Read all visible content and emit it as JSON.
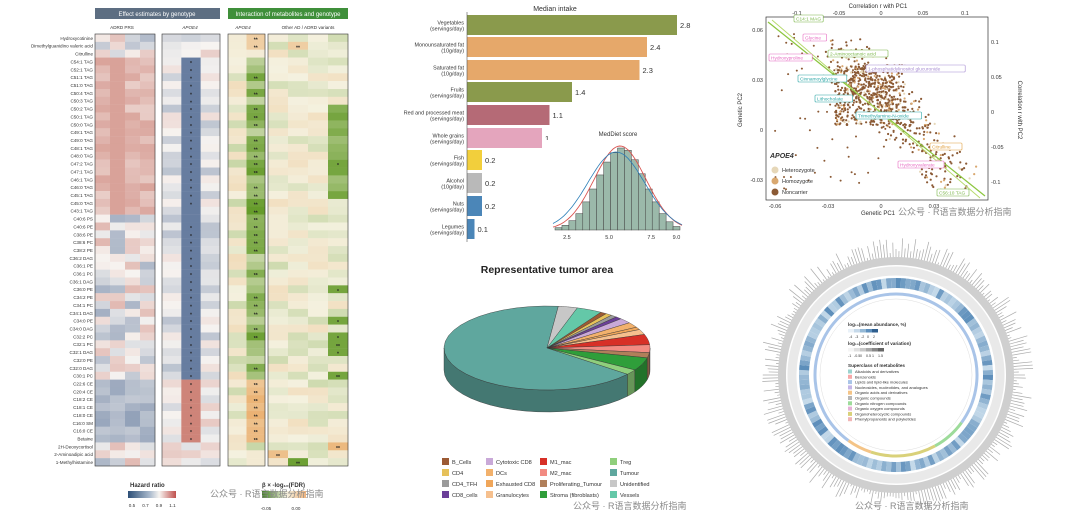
{
  "heatmap": {
    "type": "heatmap",
    "header_left": "Effect estimates by genotype",
    "header_right": "Interaction of metabolites and genotype",
    "col_adrd": "ADRD PRS",
    "col_apoe4": "APOE4",
    "col_apoe4_int": "APOE4",
    "col_other": "Other AD / ADRD variants",
    "rows": [
      "Hydroxycotinine",
      "Dimethylguanidino valeric acid",
      "Citrulline",
      "C54:1 TAG",
      "C52:1 TAG",
      "C51:1 TAG",
      "C51:0 TAG",
      "C50:4 TAG",
      "C50:3 TAG",
      "C50:2 TAG",
      "C50:1 TAG",
      "C50:0 TAG",
      "C49:1 TAG",
      "C49:0 TAG",
      "C48:1 TAG",
      "C48:0 TAG",
      "C47:2 TAG",
      "C47:1 TAG",
      "C46:1 TAG",
      "C46:0 TAG",
      "C45:1 TAG",
      "C45:0 TAG",
      "C43:1 TAG",
      "C40:6 PS",
      "C40:6 PE",
      "C38:6 PE",
      "C38:6 PC",
      "C38:2 PE",
      "C36:2 DAG",
      "C36:1 PE",
      "C36:1 PC",
      "C36:1 DAG",
      "C36:0 PE",
      "C34:2 PE",
      "C34:1 PC",
      "C34:1 DAG",
      "C34:0 PE",
      "C34:0 DAG",
      "C32:2 PC",
      "C32:1 PC",
      "C32:1 DAG",
      "C32:0 PE",
      "C32:0 DAG",
      "C30:1 PC",
      "C22:6 CE",
      "C20:4 CE",
      "C18:2 CE",
      "C18:1 CE",
      "C18:0 CE",
      "C16:0 SM",
      "C16:0 CE",
      "Betaine",
      "2H-Deoxycortisol",
      "2-Aminoadipic acid",
      "1-Methylhistamine"
    ],
    "legend1_title": "Hazard ratio",
    "legend1_ticks": [
      "0.5",
      "0.7",
      "0.9",
      "1.1"
    ],
    "legend2_title": "β × -log₁₀(FDR)",
    "legend2_ticks": [
      "-0.05",
      "0.00"
    ]
  },
  "intake": {
    "title": "Median intake",
    "chart_data": {
      "type": "bar",
      "categories": [
        "Vegetables (servings/day)",
        "Monounsaturated fat (10g/day)",
        "Saturated fat (10g/day)",
        "Fruits (servings/day)",
        "Red and processed meat (servings/day)",
        "Whole grains (servings/day)",
        "Fish (servings/day)",
        "Alcohol (10g/day)",
        "Nuts (servings/day)",
        "Legumes (servings/day)"
      ],
      "values": [
        2.8,
        2.4,
        2.3,
        1.4,
        1.1,
        1.0,
        0.2,
        0.2,
        0.2,
        0.1
      ],
      "labels": [
        "2.8",
        "2.4",
        "2.3",
        "1.4",
        "1.1",
        "1",
        "0.2",
        "0.2",
        "0.2",
        "0.1"
      ],
      "colors": [
        "#8a9a4c",
        "#e6a86a",
        "#e6a86a",
        "#8a9a4c",
        "#b56a76",
        "#e4a5bd",
        "#f2cf3c",
        "#b9b9b9",
        "#4b86b8",
        "#4b86b8"
      ]
    }
  },
  "meddiet": {
    "title": "MedDiet score",
    "chart_data": {
      "type": "bar",
      "x_ticks": [
        "2.5",
        "5.0",
        "7.5",
        "9.0"
      ],
      "x_tick_values": [
        2.5,
        5.0,
        7.5,
        9.0
      ],
      "xlim": [
        1.2,
        9.8
      ],
      "bin_values": [
        2,
        4,
        8,
        14,
        24,
        35,
        47,
        58,
        66,
        70,
        68,
        60,
        48,
        35,
        24,
        14,
        7,
        3
      ]
    }
  },
  "pie": {
    "title": "Representative tumor area",
    "chart_data": {
      "type": "pie",
      "categories": [
        "B_Cells",
        "CD4",
        "CD4_TFH",
        "CD8_cells",
        "Cytotoxic CD8",
        "DCs",
        "Exhausted CD8",
        "Granulocytes",
        "M1_mac",
        "M2_mac",
        "Proliferating_Tumour",
        "Stroma (fibroblasts)",
        "Treg",
        "Tumour",
        "Unidentified",
        "Vessels"
      ],
      "values": [
        1,
        1,
        1,
        1,
        2,
        2,
        1,
        2,
        4,
        3,
        2,
        5,
        2,
        66,
        3,
        4
      ],
      "colors": [
        "#9c5a34",
        "#e6c15a",
        "#9a9a9a",
        "#6b3f99",
        "#c9a9d8",
        "#f2b16c",
        "#f0a65a",
        "#f6c08e",
        "#d73027",
        "#f28b82",
        "#b07f5a",
        "#2f9e3a",
        "#8fcf7c",
        "#5fa79e",
        "#c7c7c7",
        "#64c8a8"
      ]
    }
  },
  "pca": {
    "top_axis_title": "Correlation r with PC1",
    "top_ticks": [
      "-0.1",
      "-0.05",
      "0",
      "0.05",
      "0.1"
    ],
    "left_axis_title": "Genetic PC2",
    "left_ticks": [
      "0.06",
      "0.03",
      "0",
      "-0.03"
    ],
    "bottom_axis_title": "Genetic PC1",
    "bottom_ticks": [
      "-0.06",
      "-0.03",
      "0",
      "0.03"
    ],
    "right_axis_title": "Correlation r with PC2",
    "right_ticks": [
      "0.1",
      "0.05",
      "0",
      "-0.05",
      "-0.1"
    ],
    "labels": [
      "C14:1 MAG",
      "Glycine",
      "2-Aminooctanoic acid",
      "Hydroxyproline",
      "Cinnamoylglycine",
      "1-phosphatidylinositol glucuronide",
      "Lithocholate",
      "Trimethylamine-N-oxide",
      "Citrulline",
      "Hydroxyvalerate",
      "C56:10 TAG"
    ],
    "legend_title": "APOE4",
    "legend_items": [
      "Heterozygote",
      "Homozygote",
      "Noncarrier"
    ],
    "legend_colors": [
      "#e6d7b8",
      "#d9a870",
      "#8b5a35"
    ]
  },
  "circos": {
    "legend_title1": "log₁₀(mean abundance, %)",
    "legend_ticks1": [
      "-4",
      "-3",
      "-2",
      "0",
      "2"
    ],
    "legend_title2": "log₁₀(coefficient of variation)",
    "legend_ticks2": [
      "-1",
      "-0.5",
      "0",
      "0.5",
      "1",
      "1.5"
    ],
    "legend_title3": "Superclass of metabolites",
    "superclasses": [
      "Alkaloids and derivatives",
      "Benzenoids",
      "Lipids and lipid-like molecules",
      "Nucleosides, nucleotides, and analogues",
      "Organic acids and derivatives",
      "Organic compounds",
      "Organic nitrogen compounds",
      "Organic oxygen compounds",
      "Organoheterocyclic compounds",
      "Phenylpropanoids and polyketides"
    ],
    "superclass_colors": [
      "#9bd3cf",
      "#f6a8a8",
      "#a9c4e8",
      "#c4b5e6",
      "#f4c487",
      "#b7b7b7",
      "#9ddb9a",
      "#e6b0d7",
      "#d9d17a",
      "#f0b6b6"
    ]
  },
  "watermarks": [
    "公众号 · R语言数据分析指南",
    "公众号 · R语言数据分析指南",
    "公众号 · R语言数据分析指南",
    "公众号 · R语言数据分析指南"
  ]
}
